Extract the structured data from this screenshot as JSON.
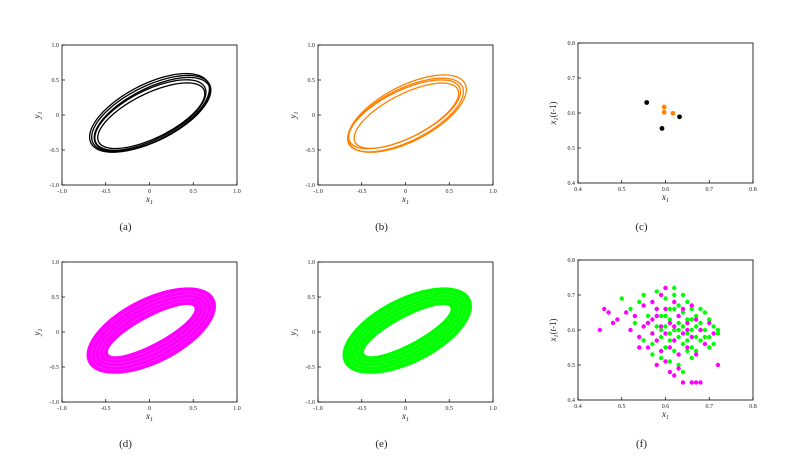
{
  "figure": {
    "panels": [
      "a",
      "b",
      "c",
      "d",
      "e",
      "f"
    ]
  },
  "chart_data": [
    {
      "id": "a",
      "type": "line",
      "caption": "(a)",
      "xlabel": "x1",
      "ylabel": "y1",
      "xlim": [
        -1.0,
        1.0
      ],
      "ylim": [
        -1.0,
        1.0
      ],
      "xticks": [
        "-1.0",
        "-0.5",
        "0",
        "0.5",
        "1.0"
      ],
      "yticks": [
        "-1.0",
        "-0.5",
        "0",
        "0.5",
        "1.0"
      ],
      "color": "#000000",
      "series": [
        {
          "kind": "loops",
          "loops": [
            {
              "cx": 0.02,
              "cy": 0.02,
              "a": 0.79,
              "b": 0.37,
              "angle": 35
            },
            {
              "cx": 0.03,
              "cy": 0.01,
              "a": 0.77,
              "b": 0.35,
              "angle": 35
            },
            {
              "cx": 0.0,
              "cy": 0.03,
              "a": 0.8,
              "b": 0.38,
              "angle": 36
            },
            {
              "cx": 0.02,
              "cy": -0.01,
              "a": 0.71,
              "b": 0.3,
              "angle": 34
            },
            {
              "cx": 0.01,
              "cy": 0.0,
              "a": 0.74,
              "b": 0.33,
              "angle": 35
            }
          ]
        }
      ]
    },
    {
      "id": "b",
      "type": "line",
      "caption": "(b)",
      "xlabel": "x1",
      "ylabel": "y1",
      "xlim": [
        -1.0,
        1.0
      ],
      "ylim": [
        -1.0,
        1.0
      ],
      "xticks": [
        "-1.0",
        "-0.5",
        "0",
        "0.5",
        "1.0"
      ],
      "yticks": [
        "-1.0",
        "-0.5",
        "0",
        "0.5",
        "1.0"
      ],
      "color": "#ff8000",
      "series": [
        {
          "kind": "loops",
          "loops": [
            {
              "cx": 0.0,
              "cy": 0.0,
              "a": 0.77,
              "b": 0.35,
              "angle": 35
            },
            {
              "cx": 0.02,
              "cy": 0.02,
              "a": 0.79,
              "b": 0.37,
              "angle": 36
            },
            {
              "cx": -0.01,
              "cy": 0.01,
              "a": 0.74,
              "b": 0.32,
              "angle": 34
            },
            {
              "cx": 0.01,
              "cy": -0.01,
              "a": 0.7,
              "b": 0.29,
              "angle": 35
            }
          ]
        }
      ]
    },
    {
      "id": "c",
      "type": "scatter",
      "caption": "(c)",
      "xlabel": "x1",
      "ylabel": "x1(t-1)",
      "xlim": [
        0.4,
        0.8
      ],
      "ylim": [
        0.4,
        0.8
      ],
      "xticks": [
        "0.4",
        "0.5",
        "0.6",
        "0.7",
        "0.8"
      ],
      "yticks": [
        "0.4",
        "0.5",
        "0.6",
        "0.7",
        "0.8"
      ],
      "series": [
        {
          "color": "#000000",
          "points": [
            [
              0.557,
              0.63
            ],
            [
              0.592,
              0.556
            ],
            [
              0.632,
              0.589
            ]
          ]
        },
        {
          "color": "#ff8000",
          "points": [
            [
              0.597,
              0.617
            ],
            [
              0.597,
              0.602
            ],
            [
              0.617,
              0.599
            ]
          ]
        }
      ]
    },
    {
      "id": "d",
      "type": "line",
      "caption": "(d)",
      "xlabel": "x1",
      "ylabel": "y1",
      "xlim": [
        -1.0,
        1.0
      ],
      "ylim": [
        -1.0,
        1.0
      ],
      "xticks": [
        "-1.0",
        "-0.5",
        "0",
        "0.5",
        "1.0"
      ],
      "yticks": [
        "-1.0",
        "-0.5",
        "0",
        "0.5",
        "1.0"
      ],
      "color": "#ff00ff",
      "series": [
        {
          "kind": "band",
          "inner": {
            "cx": 0.02,
            "cy": 0.02,
            "a": 0.6,
            "b": 0.18,
            "angle": 35
          },
          "outer": {
            "cx": 0.02,
            "cy": 0.02,
            "a": 0.85,
            "b": 0.43,
            "angle": 36
          }
        }
      ]
    },
    {
      "id": "e",
      "type": "line",
      "caption": "(e)",
      "xlabel": "x1",
      "ylabel": "y1",
      "xlim": [
        -1.0,
        1.0
      ],
      "ylim": [
        -1.0,
        1.0
      ],
      "xticks": [
        "-1.0",
        "-0.5",
        "0",
        "0.5",
        "1.0"
      ],
      "yticks": [
        "-1.0",
        "-0.5",
        "0",
        "0.5",
        "1.0"
      ],
      "color": "#00ff00",
      "series": [
        {
          "kind": "band",
          "inner": {
            "cx": 0.02,
            "cy": 0.02,
            "a": 0.6,
            "b": 0.18,
            "angle": 35
          },
          "outer": {
            "cx": 0.02,
            "cy": 0.02,
            "a": 0.85,
            "b": 0.43,
            "angle": 36
          }
        }
      ]
    },
    {
      "id": "f",
      "type": "scatter",
      "caption": "(f)",
      "xlabel": "x1",
      "ylabel": "x1(t-1)",
      "xlim": [
        0.4,
        0.8
      ],
      "ylim": [
        0.4,
        0.8
      ],
      "xticks": [
        "0.4",
        "0.5",
        "0.6",
        "0.7",
        "0.8"
      ],
      "yticks": [
        "0.4",
        "0.5",
        "0.6",
        "0.7",
        "0.8"
      ],
      "series": [
        {
          "color": "#00ff00",
          "points": [
            [
              0.5,
              0.69
            ],
            [
              0.52,
              0.66
            ],
            [
              0.54,
              0.68
            ],
            [
              0.55,
              0.7
            ],
            [
              0.56,
              0.62
            ],
            [
              0.57,
              0.59
            ],
            [
              0.58,
              0.71
            ],
            [
              0.58,
              0.66
            ],
            [
              0.59,
              0.64
            ],
            [
              0.59,
              0.58
            ],
            [
              0.6,
              0.69
            ],
            [
              0.6,
              0.61
            ],
            [
              0.6,
              0.55
            ],
            [
              0.61,
              0.66
            ],
            [
              0.61,
              0.63
            ],
            [
              0.61,
              0.57
            ],
            [
              0.62,
              0.7
            ],
            [
              0.62,
              0.6
            ],
            [
              0.62,
              0.54
            ],
            [
              0.63,
              0.67
            ],
            [
              0.63,
              0.62
            ],
            [
              0.63,
              0.58
            ],
            [
              0.64,
              0.65
            ],
            [
              0.64,
              0.61
            ],
            [
              0.64,
              0.56
            ],
            [
              0.65,
              0.68
            ],
            [
              0.65,
              0.63
            ],
            [
              0.65,
              0.59
            ],
            [
              0.66,
              0.66
            ],
            [
              0.66,
              0.6
            ],
            [
              0.66,
              0.55
            ],
            [
              0.67,
              0.64
            ],
            [
              0.67,
              0.58
            ],
            [
              0.68,
              0.62
            ],
            [
              0.68,
              0.57
            ],
            [
              0.69,
              0.65
            ],
            [
              0.69,
              0.6
            ],
            [
              0.7,
              0.63
            ],
            [
              0.7,
              0.58
            ],
            [
              0.71,
              0.61
            ],
            [
              0.71,
              0.56
            ],
            [
              0.72,
              0.59
            ],
            [
              0.72,
              0.6
            ],
            [
              0.57,
              0.53
            ],
            [
              0.59,
              0.52
            ],
            [
              0.61,
              0.51
            ],
            [
              0.63,
              0.5
            ],
            [
              0.64,
              0.48
            ],
            [
              0.55,
              0.57
            ],
            [
              0.56,
              0.64
            ],
            [
              0.6,
              0.72
            ],
            [
              0.62,
              0.72
            ],
            [
              0.58,
              0.61
            ],
            [
              0.65,
              0.54
            ],
            [
              0.67,
              0.61
            ],
            [
              0.53,
              0.62
            ],
            [
              0.6,
              0.64
            ],
            [
              0.62,
              0.66
            ],
            [
              0.64,
              0.7
            ],
            [
              0.66,
              0.63
            ],
            [
              0.68,
              0.66
            ],
            [
              0.7,
              0.55
            ],
            [
              0.66,
              0.52
            ],
            [
              0.61,
              0.59
            ],
            [
              0.57,
              0.56
            ],
            [
              0.59,
              0.6
            ],
            [
              0.63,
              0.6
            ],
            [
              0.65,
              0.57
            ],
            [
              0.67,
              0.54
            ],
            [
              0.69,
              0.58
            ]
          ]
        },
        {
          "color": "#ff00ff",
          "points": [
            [
              0.45,
              0.6
            ],
            [
              0.46,
              0.66
            ],
            [
              0.47,
              0.65
            ],
            [
              0.48,
              0.62
            ],
            [
              0.49,
              0.63
            ],
            [
              0.51,
              0.65
            ],
            [
              0.52,
              0.6
            ],
            [
              0.53,
              0.64
            ],
            [
              0.54,
              0.58
            ],
            [
              0.55,
              0.61
            ],
            [
              0.55,
              0.67
            ],
            [
              0.56,
              0.55
            ],
            [
              0.57,
              0.63
            ],
            [
              0.57,
              0.68
            ],
            [
              0.58,
              0.57
            ],
            [
              0.58,
              0.64
            ],
            [
              0.59,
              0.54
            ],
            [
              0.59,
              0.7
            ],
            [
              0.6,
              0.59
            ],
            [
              0.6,
              0.66
            ],
            [
              0.61,
              0.55
            ],
            [
              0.61,
              0.62
            ],
            [
              0.62,
              0.68
            ],
            [
              0.62,
              0.57
            ],
            [
              0.63,
              0.53
            ],
            [
              0.63,
              0.64
            ],
            [
              0.64,
              0.59
            ],
            [
              0.64,
              0.66
            ],
            [
              0.65,
              0.55
            ],
            [
              0.65,
              0.62
            ],
            [
              0.66,
              0.67
            ],
            [
              0.66,
              0.58
            ],
            [
              0.67,
              0.63
            ],
            [
              0.67,
              0.53
            ],
            [
              0.68,
              0.6
            ],
            [
              0.68,
              0.45
            ],
            [
              0.69,
              0.56
            ],
            [
              0.7,
              0.62
            ],
            [
              0.71,
              0.59
            ],
            [
              0.72,
              0.5
            ],
            [
              0.61,
              0.48
            ],
            [
              0.62,
              0.47
            ],
            [
              0.63,
              0.49
            ],
            [
              0.64,
              0.45
            ],
            [
              0.66,
              0.45
            ],
            [
              0.67,
              0.45
            ],
            [
              0.58,
              0.5
            ],
            [
              0.6,
              0.51
            ],
            [
              0.56,
              0.62
            ],
            [
              0.59,
              0.61
            ],
            [
              0.62,
              0.61
            ],
            [
              0.65,
              0.6
            ],
            [
              0.6,
              0.72
            ],
            [
              0.58,
              0.66
            ],
            [
              0.54,
              0.55
            ],
            [
              0.57,
              0.59
            ]
          ]
        }
      ]
    }
  ]
}
